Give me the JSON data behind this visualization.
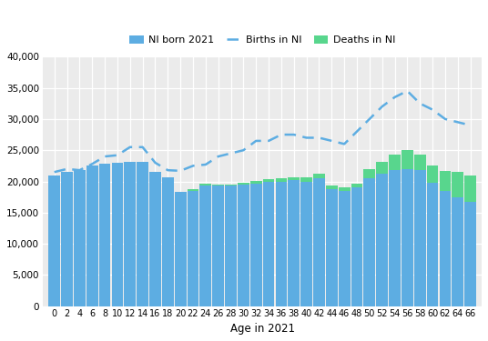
{
  "ages": [
    0,
    2,
    4,
    6,
    8,
    10,
    12,
    14,
    16,
    18,
    20,
    22,
    24,
    26,
    28,
    30,
    32,
    34,
    36,
    38,
    40,
    42,
    44,
    46,
    48,
    50,
    52,
    54,
    56,
    58,
    60,
    62,
    64,
    66
  ],
  "ni_born": [
    21000,
    21500,
    21800,
    22500,
    22800,
    23000,
    23200,
    23200,
    21500,
    20600,
    18300,
    18500,
    19300,
    19300,
    19300,
    19500,
    19700,
    19900,
    20000,
    20200,
    20000,
    20500,
    18700,
    18500,
    19000,
    20500,
    21200,
    21800,
    22000,
    21800,
    19800,
    18500,
    17500,
    16700
  ],
  "deaths": [
    0,
    0,
    0,
    0,
    0,
    0,
    0,
    0,
    0,
    0,
    0,
    200,
    300,
    200,
    200,
    300,
    400,
    400,
    500,
    500,
    600,
    700,
    600,
    600,
    700,
    1500,
    2000,
    2500,
    3000,
    2500,
    2800,
    3200,
    4000,
    4300
  ],
  "births_line": [
    21500,
    22000,
    21800,
    22800,
    24000,
    24200,
    25500,
    25500,
    23000,
    21800,
    21700,
    22500,
    22700,
    24000,
    24500,
    25000,
    26500,
    26500,
    27500,
    27500,
    27000,
    27000,
    26500,
    26000,
    28000,
    30000,
    32000,
    33500,
    34500,
    32500,
    31500,
    30000,
    29500,
    29000
  ],
  "bar_color_blue": "#5DADE2",
  "bar_color_green": "#58D68D",
  "line_color": "#5DADE2",
  "xlabel": "Age in 2021",
  "ylim": [
    0,
    40000
  ],
  "yticks": [
    0,
    5000,
    10000,
    15000,
    20000,
    25000,
    30000,
    35000,
    40000
  ],
  "legend_labels": [
    "NI born 2021",
    "Births in NI",
    "Deaths in NI"
  ],
  "plot_bg": "#EBEBEB",
  "fig_bg": "#FFFFFF"
}
